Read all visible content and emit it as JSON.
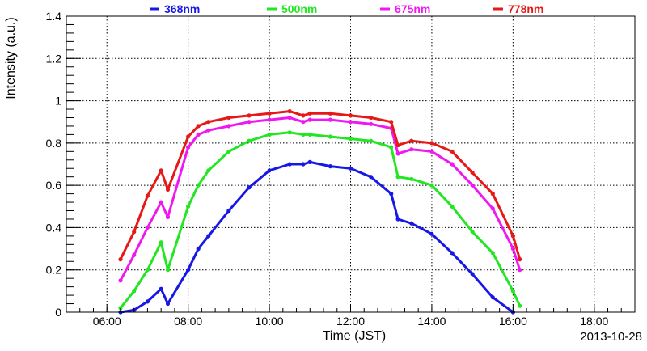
{
  "chart_data": {
    "type": "scatter",
    "xlabel": "Time (JST)",
    "ylabel": "Intensity (a.u.)",
    "date": "2013-10-28",
    "xlim": [
      "05:00",
      "19:00"
    ],
    "ylim": [
      0,
      1.4
    ],
    "x_ticks": [
      "06:00",
      "08:00",
      "10:00",
      "12:00",
      "14:00",
      "16:00",
      "18:00"
    ],
    "y_ticks": [
      "0",
      "0.2",
      "0.4",
      "0.6",
      "0.8",
      "1",
      "1.2",
      "1.4"
    ],
    "grid": true,
    "legend_position": "top",
    "series": [
      {
        "name": "368nm",
        "color": "#1818e6",
        "points": [
          [
            "06:20",
            0.0
          ],
          [
            "06:40",
            0.01
          ],
          [
            "07:00",
            0.05
          ],
          [
            "07:20",
            0.11
          ],
          [
            "07:30",
            0.04
          ],
          [
            "08:00",
            0.2
          ],
          [
            "08:15",
            0.3
          ],
          [
            "08:30",
            0.36
          ],
          [
            "09:00",
            0.48
          ],
          [
            "09:30",
            0.59
          ],
          [
            "10:00",
            0.67
          ],
          [
            "10:30",
            0.7
          ],
          [
            "10:50",
            0.7
          ],
          [
            "11:00",
            0.71
          ],
          [
            "11:30",
            0.69
          ],
          [
            "12:00",
            0.68
          ],
          [
            "12:30",
            0.64
          ],
          [
            "13:00",
            0.56
          ],
          [
            "13:10",
            0.44
          ],
          [
            "13:30",
            0.42
          ],
          [
            "14:00",
            0.37
          ],
          [
            "14:30",
            0.28
          ],
          [
            "15:00",
            0.18
          ],
          [
            "15:30",
            0.07
          ],
          [
            "16:00",
            0.0
          ]
        ]
      },
      {
        "name": "500nm",
        "color": "#22e622",
        "points": [
          [
            "06:20",
            0.02
          ],
          [
            "06:40",
            0.1
          ],
          [
            "07:00",
            0.2
          ],
          [
            "07:20",
            0.33
          ],
          [
            "07:30",
            0.2
          ],
          [
            "08:00",
            0.5
          ],
          [
            "08:15",
            0.6
          ],
          [
            "08:30",
            0.67
          ],
          [
            "09:00",
            0.76
          ],
          [
            "09:30",
            0.81
          ],
          [
            "10:00",
            0.84
          ],
          [
            "10:30",
            0.85
          ],
          [
            "10:50",
            0.84
          ],
          [
            "11:00",
            0.84
          ],
          [
            "11:30",
            0.83
          ],
          [
            "12:00",
            0.82
          ],
          [
            "12:30",
            0.81
          ],
          [
            "13:00",
            0.78
          ],
          [
            "13:10",
            0.64
          ],
          [
            "13:30",
            0.63
          ],
          [
            "14:00",
            0.6
          ],
          [
            "14:30",
            0.5
          ],
          [
            "15:00",
            0.38
          ],
          [
            "15:30",
            0.28
          ],
          [
            "16:00",
            0.1
          ],
          [
            "16:10",
            0.03
          ]
        ]
      },
      {
        "name": "675nm",
        "color": "#f018f0",
        "points": [
          [
            "06:20",
            0.15
          ],
          [
            "06:40",
            0.27
          ],
          [
            "07:00",
            0.4
          ],
          [
            "07:20",
            0.52
          ],
          [
            "07:30",
            0.45
          ],
          [
            "08:00",
            0.78
          ],
          [
            "08:15",
            0.84
          ],
          [
            "08:30",
            0.86
          ],
          [
            "09:00",
            0.88
          ],
          [
            "09:30",
            0.9
          ],
          [
            "10:00",
            0.91
          ],
          [
            "10:30",
            0.92
          ],
          [
            "10:50",
            0.9
          ],
          [
            "11:00",
            0.91
          ],
          [
            "11:30",
            0.91
          ],
          [
            "12:00",
            0.9
          ],
          [
            "12:30",
            0.89
          ],
          [
            "13:00",
            0.87
          ],
          [
            "13:10",
            0.75
          ],
          [
            "13:30",
            0.77
          ],
          [
            "14:00",
            0.76
          ],
          [
            "14:30",
            0.7
          ],
          [
            "15:00",
            0.6
          ],
          [
            "15:30",
            0.49
          ],
          [
            "16:00",
            0.3
          ],
          [
            "16:10",
            0.2
          ]
        ]
      },
      {
        "name": "778nm",
        "color": "#e61818",
        "points": [
          [
            "06:20",
            0.25
          ],
          [
            "06:40",
            0.38
          ],
          [
            "07:00",
            0.55
          ],
          [
            "07:20",
            0.67
          ],
          [
            "07:30",
            0.58
          ],
          [
            "08:00",
            0.83
          ],
          [
            "08:15",
            0.88
          ],
          [
            "08:30",
            0.9
          ],
          [
            "09:00",
            0.92
          ],
          [
            "09:30",
            0.93
          ],
          [
            "10:00",
            0.94
          ],
          [
            "10:30",
            0.95
          ],
          [
            "10:50",
            0.93
          ],
          [
            "11:00",
            0.94
          ],
          [
            "11:30",
            0.94
          ],
          [
            "12:00",
            0.93
          ],
          [
            "12:30",
            0.92
          ],
          [
            "13:00",
            0.9
          ],
          [
            "13:10",
            0.79
          ],
          [
            "13:30",
            0.81
          ],
          [
            "14:00",
            0.8
          ],
          [
            "14:30",
            0.76
          ],
          [
            "15:00",
            0.66
          ],
          [
            "15:30",
            0.56
          ],
          [
            "16:00",
            0.36
          ],
          [
            "16:10",
            0.25
          ]
        ]
      }
    ]
  }
}
